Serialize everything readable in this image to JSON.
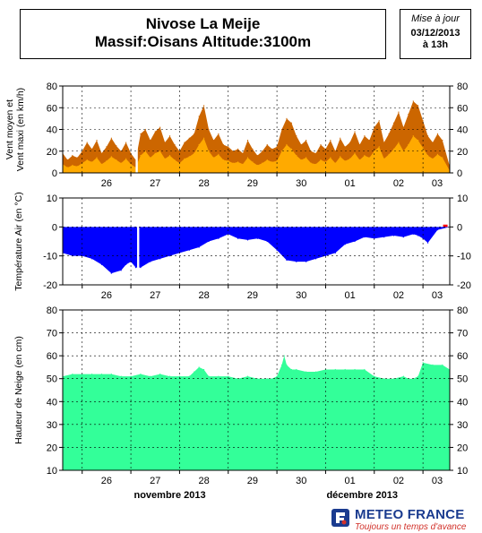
{
  "header": {
    "title_line1": "Nivose La Meije",
    "title_line2": "Massif:Oisans Altitude:3100m",
    "issue_label": "Mise à jour",
    "issue_date": "03/12/2013",
    "issue_hour": "à 13h"
  },
  "footer": {
    "brand": "METEO FRANCE",
    "tagline": "Toujours un temps d'avance"
  },
  "colors": {
    "wind_max": "#cc6600",
    "wind_mean": "#ffaa00",
    "temperature": "#0000ff",
    "temperature_positive": "#ff0000",
    "snow": "#33ff99",
    "brand_blue": "#1a3b8f",
    "brand_red": "#d2312a"
  },
  "chart_data": [
    {
      "type": "area",
      "ylabel": "Vent moyen et Vent maxi (en km/h)",
      "ylim": [
        0,
        80
      ],
      "yticks": [
        0,
        20,
        40,
        60,
        80
      ],
      "x_day_labels": [
        "26",
        "27",
        "28",
        "29",
        "30",
        "01",
        "02",
        "03"
      ],
      "x_start": 25.6,
      "x_end": 33.55,
      "gap_x": [
        27.12
      ],
      "grid": true,
      "series": [
        {
          "key": "max",
          "x": [
            25.6,
            25.7,
            25.8,
            25.9,
            26.0,
            26.1,
            26.2,
            26.3,
            26.4,
            26.5,
            26.6,
            26.7,
            26.8,
            26.9,
            27.0,
            27.1,
            27.2,
            27.3,
            27.4,
            27.5,
            27.6,
            27.7,
            27.8,
            27.9,
            28.0,
            28.1,
            28.2,
            28.3,
            28.4,
            28.5,
            28.6,
            28.7,
            28.8,
            28.9,
            29.0,
            29.1,
            29.2,
            29.3,
            29.4,
            29.5,
            29.6,
            29.7,
            29.8,
            29.9,
            30.0,
            30.1,
            30.2,
            30.3,
            30.4,
            30.5,
            30.6,
            30.7,
            30.8,
            30.9,
            31.0,
            31.1,
            31.2,
            31.3,
            31.4,
            31.5,
            31.6,
            31.7,
            31.8,
            31.9,
            32.0,
            32.1,
            32.2,
            32.3,
            32.4,
            32.5,
            32.6,
            32.7,
            32.8,
            32.9,
            33.0,
            33.1,
            33.2,
            33.3,
            33.4,
            33.55
          ],
          "values": [
            18,
            12,
            16,
            14,
            20,
            28,
            22,
            30,
            18,
            24,
            32,
            25,
            20,
            28,
            18,
            12,
            36,
            40,
            30,
            38,
            42,
            28,
            34,
            26,
            20,
            28,
            32,
            36,
            52,
            62,
            40,
            30,
            36,
            26,
            24,
            20,
            22,
            18,
            30,
            22,
            16,
            20,
            26,
            22,
            24,
            40,
            50,
            46,
            34,
            26,
            30,
            20,
            18,
            26,
            22,
            30,
            20,
            32,
            24,
            28,
            38,
            26,
            34,
            30,
            42,
            48,
            28,
            36,
            46,
            56,
            42,
            54,
            66,
            62,
            48,
            34,
            28,
            36,
            30,
            6
          ]
        },
        {
          "key": "mean",
          "x": [
            25.6,
            25.7,
            25.8,
            25.9,
            26.0,
            26.1,
            26.2,
            26.3,
            26.4,
            26.5,
            26.6,
            26.7,
            26.8,
            26.9,
            27.0,
            27.1,
            27.2,
            27.3,
            27.4,
            27.5,
            27.6,
            27.7,
            27.8,
            27.9,
            28.0,
            28.1,
            28.2,
            28.3,
            28.4,
            28.5,
            28.6,
            28.7,
            28.8,
            28.9,
            29.0,
            29.1,
            29.2,
            29.3,
            29.4,
            29.5,
            29.6,
            29.7,
            29.8,
            29.9,
            30.0,
            30.1,
            30.2,
            30.3,
            30.4,
            30.5,
            30.6,
            30.7,
            30.8,
            30.9,
            31.0,
            31.1,
            31.2,
            31.3,
            31.4,
            31.5,
            31.6,
            31.7,
            31.8,
            31.9,
            32.0,
            32.1,
            32.2,
            32.3,
            32.4,
            32.5,
            32.6,
            32.7,
            32.8,
            32.9,
            33.0,
            33.1,
            33.2,
            33.3,
            33.4,
            33.55
          ],
          "values": [
            8,
            5,
            7,
            6,
            9,
            12,
            10,
            14,
            8,
            11,
            15,
            12,
            9,
            13,
            8,
            5,
            16,
            20,
            14,
            18,
            20,
            13,
            16,
            12,
            9,
            13,
            15,
            18,
            26,
            32,
            20,
            14,
            17,
            12,
            11,
            9,
            10,
            8,
            14,
            10,
            7,
            9,
            12,
            10,
            11,
            20,
            26,
            22,
            16,
            12,
            14,
            9,
            8,
            12,
            10,
            14,
            9,
            15,
            11,
            13,
            18,
            12,
            16,
            14,
            20,
            24,
            13,
            17,
            22,
            28,
            20,
            26,
            34,
            30,
            23,
            16,
            13,
            17,
            14,
            2
          ]
        }
      ]
    },
    {
      "type": "area",
      "ylabel": "Température Air (en °C)",
      "ylim": [
        -20,
        10
      ],
      "yticks": [
        -20,
        -10,
        0,
        10
      ],
      "x_day_labels": [
        "26",
        "27",
        "28",
        "29",
        "30",
        "01",
        "02",
        "03"
      ],
      "x_start": 25.6,
      "x_end": 33.55,
      "gap_x": [
        27.15
      ],
      "grid": true,
      "series": [
        {
          "key": "temperature",
          "x": [
            25.6,
            25.8,
            26.0,
            26.2,
            26.4,
            26.6,
            26.8,
            26.9,
            27.0,
            27.1,
            27.2,
            27.4,
            27.6,
            27.8,
            28.0,
            28.2,
            28.4,
            28.6,
            28.8,
            29.0,
            29.2,
            29.4,
            29.6,
            29.8,
            30.0,
            30.2,
            30.4,
            30.6,
            30.8,
            31.0,
            31.2,
            31.4,
            31.6,
            31.8,
            32.0,
            32.2,
            32.4,
            32.6,
            32.8,
            32.9,
            33.0,
            33.1,
            33.3,
            33.55
          ],
          "values": [
            -9,
            -10,
            -10,
            -11,
            -13,
            -16,
            -15,
            -13,
            -12,
            -14,
            -14,
            -12,
            -11,
            -10,
            -9,
            -8,
            -7,
            -5,
            -4,
            -2.5,
            -4,
            -4.5,
            -4,
            -5,
            -8,
            -11.5,
            -12,
            -12,
            -11,
            -10,
            -9,
            -6,
            -5,
            -3.5,
            -4,
            -3.5,
            -3,
            -3.5,
            -2.5,
            -3,
            -4,
            -5.5,
            -1,
            0
          ]
        },
        {
          "key": "positive_marker",
          "x": [
            33.45
          ],
          "values": [
            0.8
          ]
        }
      ]
    },
    {
      "type": "area",
      "ylabel": "Hauteur de Neige (en cm)",
      "ylim": [
        10,
        80
      ],
      "yticks": [
        10,
        20,
        30,
        40,
        50,
        60,
        70,
        80
      ],
      "x_day_labels": [
        "26",
        "27",
        "28",
        "29",
        "30",
        "01",
        "02",
        "03"
      ],
      "x_month_labels": [
        {
          "label": "novembre 2013",
          "at": 27.8
        },
        {
          "label": "décembre 2013",
          "at": 31.75
        }
      ],
      "x_start": 25.6,
      "x_end": 33.55,
      "grid": true,
      "series": [
        {
          "key": "snow_depth",
          "x": [
            25.6,
            25.8,
            26.0,
            26.2,
            26.4,
            26.6,
            26.8,
            27.0,
            27.2,
            27.4,
            27.6,
            27.8,
            28.0,
            28.2,
            28.3,
            28.4,
            28.5,
            28.6,
            28.8,
            29.0,
            29.2,
            29.4,
            29.6,
            29.8,
            29.9,
            30.0,
            30.1,
            30.15,
            30.2,
            30.3,
            30.4,
            30.6,
            30.8,
            31.0,
            31.2,
            31.4,
            31.6,
            31.8,
            32.0,
            32.2,
            32.4,
            32.6,
            32.7,
            32.8,
            32.9,
            33.0,
            33.2,
            33.4,
            33.55
          ],
          "values": [
            51,
            52,
            52,
            52,
            52,
            52,
            51,
            51,
            52,
            51,
            52,
            51,
            51,
            51,
            53,
            55,
            54,
            51,
            51,
            51,
            50,
            51,
            50,
            50,
            50,
            51,
            56,
            60,
            56,
            54,
            54,
            53,
            53,
            54,
            54,
            54,
            54,
            54,
            51,
            50,
            50,
            51,
            50,
            50,
            51,
            57,
            56,
            56,
            54
          ]
        }
      ]
    }
  ]
}
